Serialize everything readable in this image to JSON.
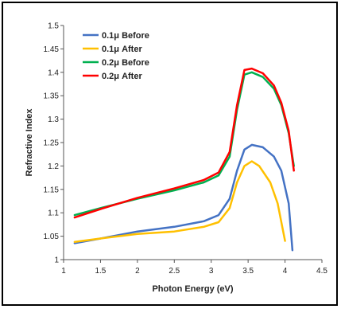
{
  "chart_data": {
    "type": "line",
    "title": "",
    "xlabel": "Photon Energy (eV)",
    "ylabel": "Refractive Index",
    "xlim": [
      1,
      4.5
    ],
    "ylim": [
      1,
      1.5
    ],
    "x_ticks": [
      1,
      1.5,
      2,
      2.5,
      3,
      3.5,
      4,
      4.5
    ],
    "x_tick_labels": [
      "1",
      "1.5",
      "2",
      "2.5",
      "3",
      "3.5",
      "4",
      "4.5"
    ],
    "y_ticks": [
      1,
      1.05,
      1.1,
      1.15,
      1.2,
      1.25,
      1.3,
      1.35,
      1.4,
      1.45,
      1.5
    ],
    "y_tick_labels": [
      "1",
      "1.05",
      "1.1",
      "1.15",
      "1.2",
      "1.25",
      "1.3",
      "1.35",
      "1.4",
      "1.45",
      "1.5"
    ],
    "grid": false,
    "legend_position": "top-left",
    "series": [
      {
        "name": "0.1μ Before",
        "color": "#4472c4",
        "points": [
          [
            1.15,
            1.035
          ],
          [
            1.5,
            1.045
          ],
          [
            2.0,
            1.06
          ],
          [
            2.5,
            1.07
          ],
          [
            2.9,
            1.082
          ],
          [
            3.1,
            1.095
          ],
          [
            3.25,
            1.13
          ],
          [
            3.35,
            1.19
          ],
          [
            3.45,
            1.235
          ],
          [
            3.55,
            1.245
          ],
          [
            3.7,
            1.24
          ],
          [
            3.85,
            1.22
          ],
          [
            3.95,
            1.19
          ],
          [
            4.05,
            1.12
          ],
          [
            4.1,
            1.02
          ]
        ]
      },
      {
        "name": "0.1μ After",
        "color": "#ffc000",
        "points": [
          [
            1.15,
            1.038
          ],
          [
            1.5,
            1.045
          ],
          [
            2.0,
            1.055
          ],
          [
            2.5,
            1.06
          ],
          [
            2.9,
            1.07
          ],
          [
            3.1,
            1.08
          ],
          [
            3.25,
            1.11
          ],
          [
            3.35,
            1.165
          ],
          [
            3.45,
            1.2
          ],
          [
            3.55,
            1.21
          ],
          [
            3.65,
            1.2
          ],
          [
            3.8,
            1.165
          ],
          [
            3.9,
            1.12
          ],
          [
            4.0,
            1.04
          ]
        ]
      },
      {
        "name": "0.2μ Before",
        "color": "#00b050",
        "points": [
          [
            1.15,
            1.095
          ],
          [
            1.5,
            1.11
          ],
          [
            2.0,
            1.13
          ],
          [
            2.5,
            1.148
          ],
          [
            2.9,
            1.165
          ],
          [
            3.1,
            1.18
          ],
          [
            3.25,
            1.22
          ],
          [
            3.35,
            1.32
          ],
          [
            3.45,
            1.395
          ],
          [
            3.55,
            1.4
          ],
          [
            3.7,
            1.39
          ],
          [
            3.85,
            1.365
          ],
          [
            3.95,
            1.33
          ],
          [
            4.05,
            1.27
          ],
          [
            4.12,
            1.2
          ]
        ]
      },
      {
        "name": "0.2μ After",
        "color": "#ff0000",
        "points": [
          [
            1.15,
            1.09
          ],
          [
            1.5,
            1.108
          ],
          [
            2.0,
            1.132
          ],
          [
            2.5,
            1.152
          ],
          [
            2.9,
            1.17
          ],
          [
            3.1,
            1.186
          ],
          [
            3.25,
            1.23
          ],
          [
            3.35,
            1.33
          ],
          [
            3.45,
            1.405
          ],
          [
            3.55,
            1.408
          ],
          [
            3.7,
            1.398
          ],
          [
            3.85,
            1.372
          ],
          [
            3.95,
            1.335
          ],
          [
            4.05,
            1.275
          ],
          [
            4.12,
            1.19
          ]
        ]
      }
    ]
  }
}
